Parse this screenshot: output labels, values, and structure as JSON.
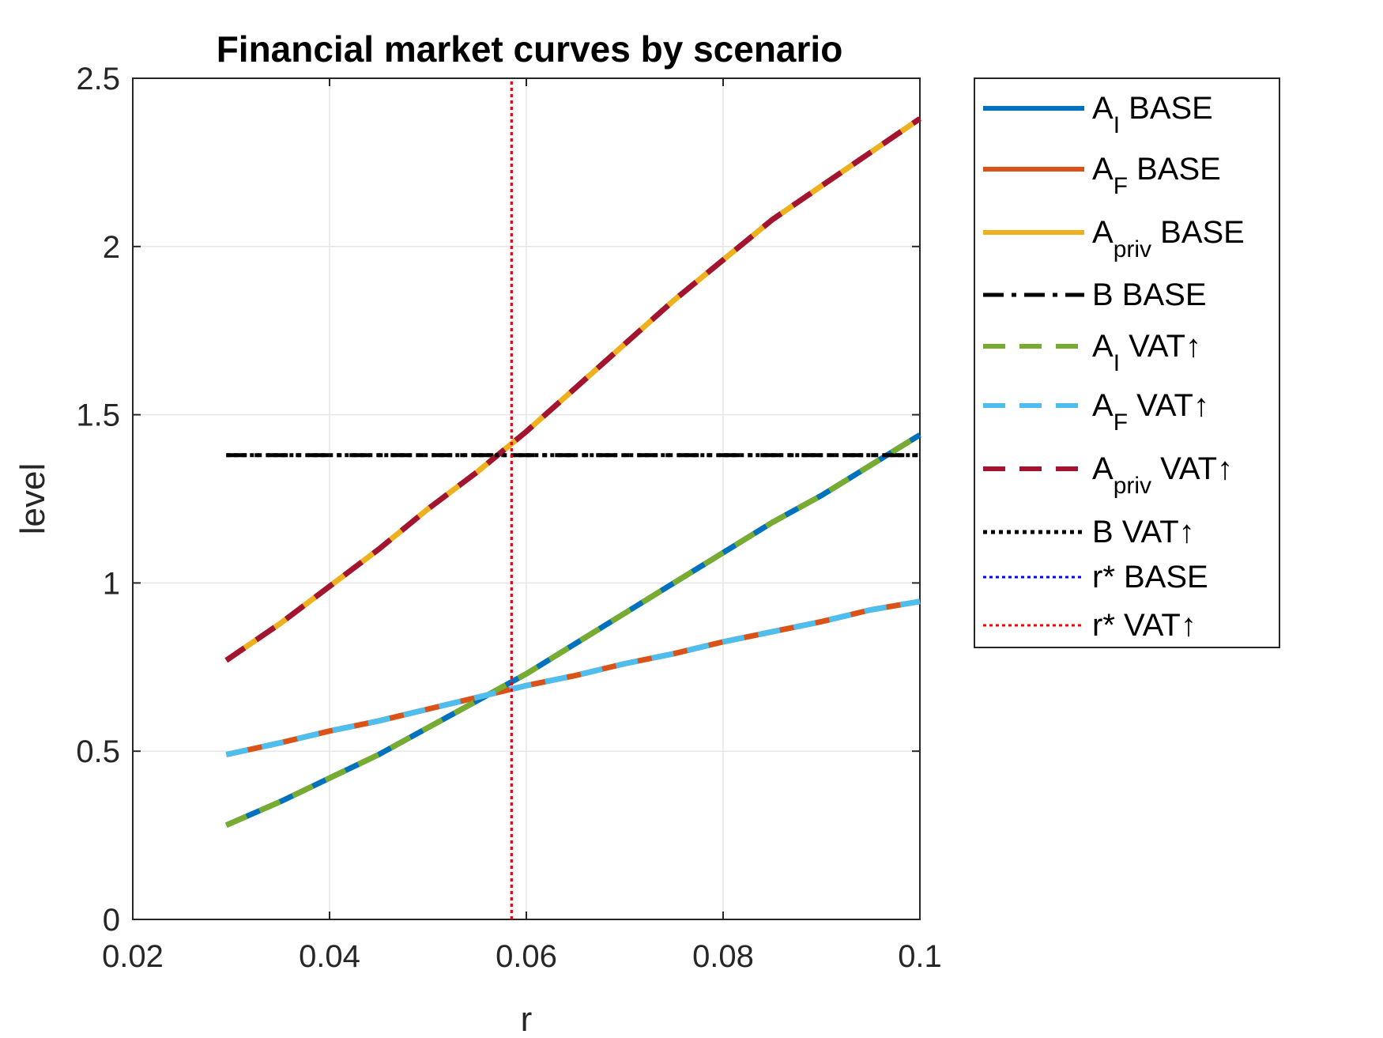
{
  "chart_data": {
    "type": "line",
    "title": "Financial market curves by scenario",
    "xlabel": "r",
    "ylabel": "level",
    "xlim": [
      0.02,
      0.1
    ],
    "ylim": [
      0,
      2.5
    ],
    "xticks": [
      0.02,
      0.04,
      0.06,
      0.08,
      0.1
    ],
    "xtick_labels": [
      "0.02",
      "0.04",
      "0.06",
      "0.08",
      "0.1"
    ],
    "yticks": [
      0,
      0.5,
      1,
      1.5,
      2,
      2.5
    ],
    "ytick_labels": [
      "0",
      "0.5",
      "1",
      "1.5",
      "2",
      "2.5"
    ],
    "grid": true,
    "legend_position": "outside-right",
    "series": [
      {
        "key": "ai_base",
        "name": "A_I BASE",
        "legend_main": "A",
        "legend_sub": "I",
        "legend_rest": " BASE",
        "color": "#0072BD",
        "style": "solid",
        "x": [
          0.0295,
          0.035,
          0.04,
          0.045,
          0.05,
          0.055,
          0.06,
          0.065,
          0.07,
          0.075,
          0.08,
          0.085,
          0.09,
          0.095,
          0.1
        ],
        "y": [
          0.28,
          0.35,
          0.42,
          0.49,
          0.57,
          0.65,
          0.73,
          0.82,
          0.91,
          1.0,
          1.09,
          1.18,
          1.26,
          1.35,
          1.44
        ]
      },
      {
        "key": "af_base",
        "name": "A_F BASE",
        "legend_main": "A",
        "legend_sub": "F",
        "legend_rest": " BASE",
        "color": "#D95319",
        "style": "solid",
        "x": [
          0.0295,
          0.035,
          0.04,
          0.045,
          0.05,
          0.055,
          0.06,
          0.065,
          0.07,
          0.075,
          0.08,
          0.085,
          0.09,
          0.095,
          0.1
        ],
        "y": [
          0.49,
          0.525,
          0.56,
          0.59,
          0.625,
          0.66,
          0.695,
          0.725,
          0.76,
          0.79,
          0.825,
          0.855,
          0.885,
          0.92,
          0.945
        ]
      },
      {
        "key": "apriv_base",
        "name": "A_priv BASE",
        "legend_main": "A",
        "legend_sub": "priv",
        "legend_rest": " BASE",
        "color": "#EDB120",
        "style": "solid",
        "x": [
          0.0295,
          0.035,
          0.04,
          0.045,
          0.05,
          0.055,
          0.06,
          0.065,
          0.07,
          0.075,
          0.08,
          0.085,
          0.09,
          0.095,
          0.1
        ],
        "y": [
          0.77,
          0.88,
          0.99,
          1.1,
          1.22,
          1.33,
          1.45,
          1.58,
          1.71,
          1.84,
          1.96,
          2.08,
          2.18,
          2.28,
          2.38
        ]
      },
      {
        "key": "b_base",
        "name": "B BASE",
        "legend_main": "B BASE",
        "legend_sub": "",
        "legend_rest": "",
        "color": "#000000",
        "style": "dashdot",
        "x": [
          0.0295,
          0.1
        ],
        "y": [
          1.38,
          1.38
        ]
      },
      {
        "key": "ai_vat",
        "name": "A_I VAT↑",
        "legend_main": "A",
        "legend_sub": "I",
        "legend_rest": " VAT↑",
        "color": "#77AC30",
        "style": "dashed",
        "x": [
          0.0295,
          0.035,
          0.04,
          0.045,
          0.05,
          0.055,
          0.06,
          0.065,
          0.07,
          0.075,
          0.08,
          0.085,
          0.09,
          0.095,
          0.1
        ],
        "y": [
          0.28,
          0.35,
          0.42,
          0.49,
          0.57,
          0.65,
          0.73,
          0.82,
          0.91,
          1.0,
          1.09,
          1.18,
          1.26,
          1.35,
          1.44
        ]
      },
      {
        "key": "af_vat",
        "name": "A_F VAT↑",
        "legend_main": "A",
        "legend_sub": "F",
        "legend_rest": " VAT↑",
        "color": "#4DBEEE",
        "style": "dashed",
        "x": [
          0.0295,
          0.035,
          0.04,
          0.045,
          0.05,
          0.055,
          0.06,
          0.065,
          0.07,
          0.075,
          0.08,
          0.085,
          0.09,
          0.095,
          0.1
        ],
        "y": [
          0.49,
          0.525,
          0.56,
          0.59,
          0.625,
          0.66,
          0.695,
          0.725,
          0.76,
          0.79,
          0.825,
          0.855,
          0.885,
          0.92,
          0.945
        ]
      },
      {
        "key": "apriv_vat",
        "name": "A_priv VAT↑",
        "legend_main": "A",
        "legend_sub": "priv",
        "legend_rest": " VAT↑",
        "color": "#A2142F",
        "style": "dashed",
        "x": [
          0.0295,
          0.035,
          0.04,
          0.045,
          0.05,
          0.055,
          0.06,
          0.065,
          0.07,
          0.075,
          0.08,
          0.085,
          0.09,
          0.095,
          0.1
        ],
        "y": [
          0.77,
          0.88,
          0.99,
          1.1,
          1.22,
          1.33,
          1.45,
          1.58,
          1.71,
          1.84,
          1.96,
          2.08,
          2.18,
          2.28,
          2.38
        ]
      },
      {
        "key": "b_vat",
        "name": "B VAT↑",
        "legend_main": "B VAT↑",
        "legend_sub": "",
        "legend_rest": "",
        "color": "#000000",
        "style": "dotted",
        "x": [
          0.0295,
          0.1
        ],
        "y": [
          1.38,
          1.38
        ]
      },
      {
        "key": "rstar_base",
        "name": "r* BASE",
        "legend_main": "r* BASE",
        "legend_sub": "",
        "legend_rest": "",
        "color": "#0000FF",
        "style": "dotted-thin",
        "x": [
          0.0585,
          0.0585
        ],
        "y": [
          0,
          2.5
        ]
      },
      {
        "key": "rstar_vat",
        "name": "r* VAT↑",
        "legend_main": "r* VAT↑",
        "legend_sub": "",
        "legend_rest": "",
        "color": "#FF0000",
        "style": "dotted-thin",
        "x": [
          0.0585,
          0.0585
        ],
        "y": [
          0,
          2.5
        ]
      }
    ]
  }
}
